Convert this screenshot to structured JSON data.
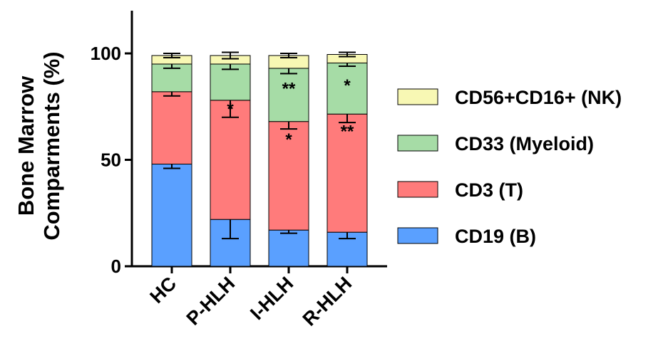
{
  "chart_data": {
    "type": "bar",
    "stacked": true,
    "ylabel_lines": [
      "Bone Marrow",
      "Comparments (%)"
    ],
    "ylim": [
      0,
      120
    ],
    "yticks": [
      0,
      50,
      100
    ],
    "categories": [
      "HC",
      "P-HLH",
      "I-HLH",
      "R-HLH"
    ],
    "series": [
      {
        "name": "CD19 (B)",
        "color": "#5aa0ff",
        "values": [
          48,
          22,
          17,
          16
        ],
        "error": [
          2,
          9,
          1.5,
          3
        ],
        "significance": [
          "",
          "***",
          "****",
          "****"
        ]
      },
      {
        "name": "CD3 (T)",
        "color": "#ff7b7b",
        "values": [
          34,
          56,
          51,
          55.5
        ],
        "error": [
          2,
          8,
          3.5,
          4
        ],
        "significance": [
          "",
          "*",
          "*",
          "**"
        ]
      },
      {
        "name": "CD33 (Myeloid)",
        "color": "#a6dca6",
        "values": [
          13,
          17,
          25,
          24
        ],
        "error": [
          2,
          2.5,
          2.5,
          1.5
        ],
        "significance": [
          "",
          "",
          "**",
          "*"
        ]
      },
      {
        "name": "CD56+CD16+ (NK)",
        "color": "#f8f8b4",
        "values": [
          4,
          4,
          6,
          4
        ],
        "error": [
          1,
          1.5,
          1,
          1
        ],
        "significance": [
          "",
          "",
          "",
          ""
        ]
      }
    ],
    "legend_position": "right",
    "legend_order": [
      "CD56+CD16+ (NK)",
      "CD33 (Myeloid)",
      "CD3 (T)",
      "CD19 (B)"
    ],
    "grid": false
  }
}
